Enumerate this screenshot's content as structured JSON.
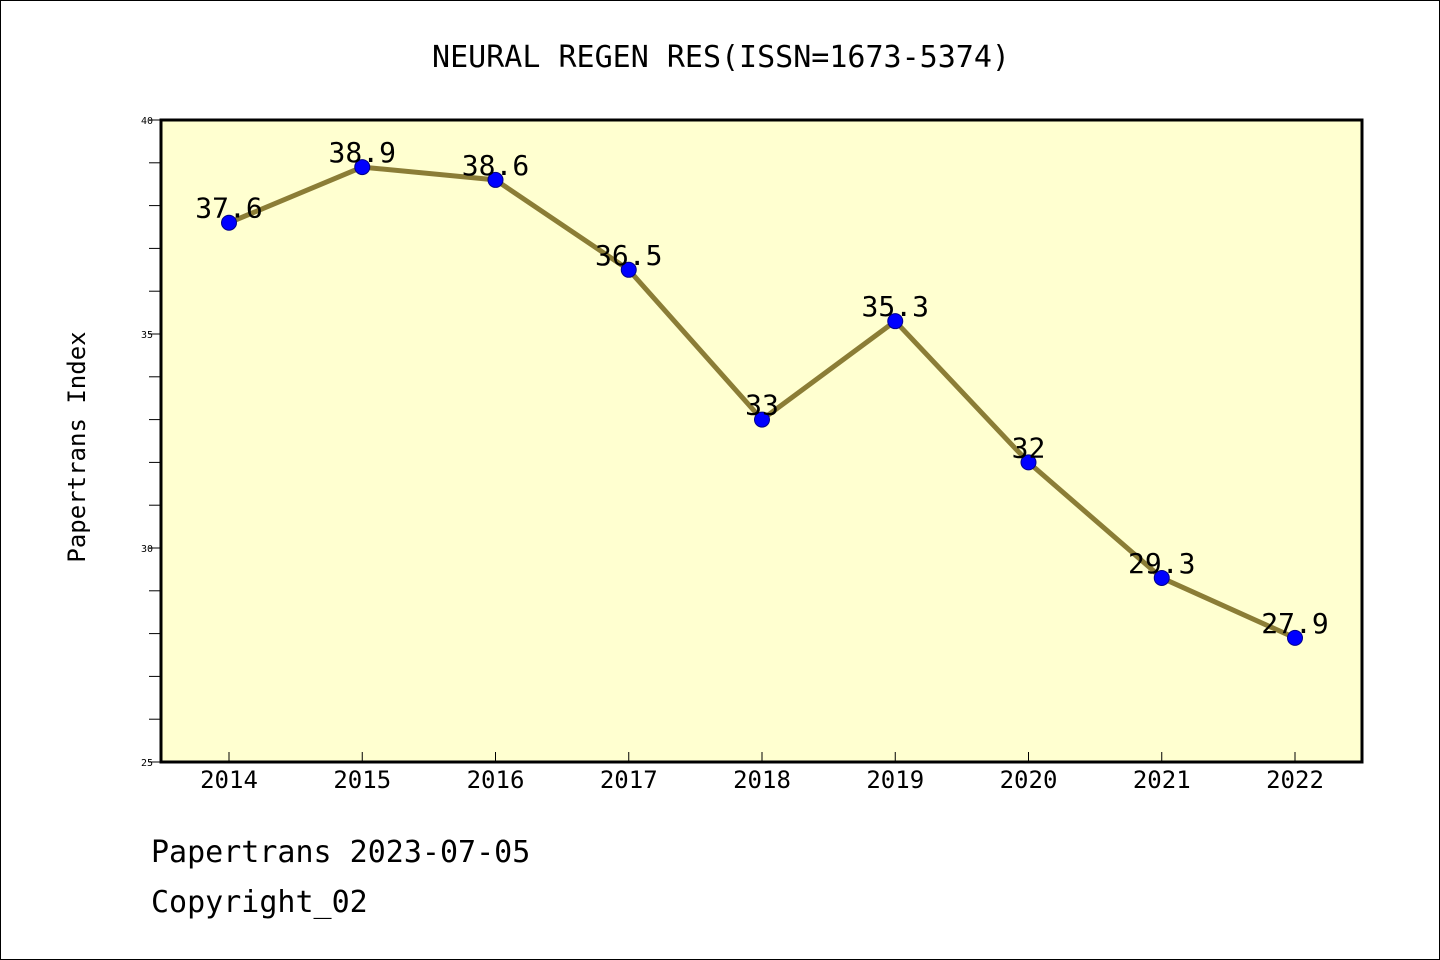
{
  "chart_data": {
    "type": "line",
    "title": "NEURAL REGEN RES(ISSN=1673-5374)",
    "xlabel": "",
    "ylabel": "Papertrans Index",
    "categories": [
      "2014",
      "2015",
      "2016",
      "2017",
      "2018",
      "2019",
      "2020",
      "2021",
      "2022"
    ],
    "series": [
      {
        "values": [
          37.6,
          38.9,
          38.6,
          36.5,
          33,
          35.3,
          32,
          29.3,
          27.9
        ],
        "labels": [
          "37.6",
          "38.9",
          "38.6",
          "36.5",
          "33",
          "35.3",
          "32",
          "29.3",
          "27.9"
        ]
      }
    ],
    "ylim": [
      25,
      40
    ],
    "yticks": [
      "25",
      "30",
      "35",
      "40"
    ],
    "grid": false,
    "legend": "none",
    "colors": {
      "plot_background": "#ffffd0",
      "line": "#8b7d36",
      "marker": "#0000ff",
      "marker_edge": "#00008b",
      "frame": "#000000"
    }
  },
  "footer": {
    "line1": "Papertrans 2023-07-05",
    "line2": "Copyright_02"
  }
}
